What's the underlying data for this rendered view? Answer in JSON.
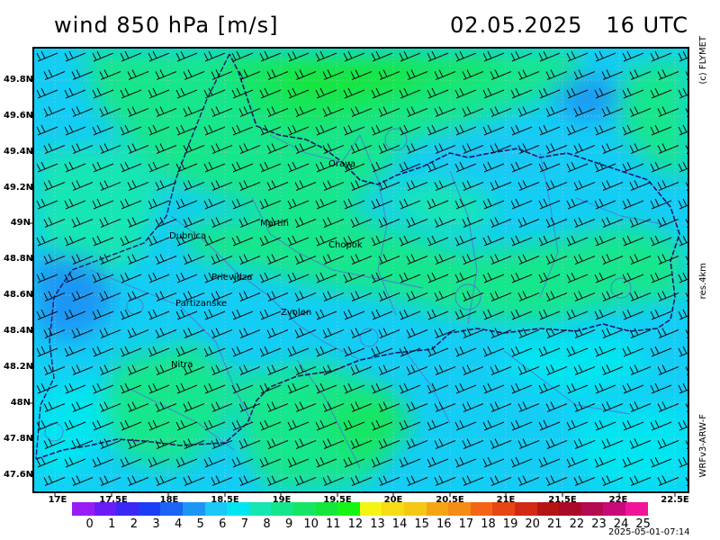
{
  "title": "wind 850 hPa [m/s]",
  "datetime": "02.05.2025",
  "time_utc": "16 UTC",
  "side_labels": {
    "copyright": "(c) FLYMET",
    "resolution": "res.4km",
    "model": "WRFv3-ARW-F"
  },
  "latitude_labels": [
    "49.8N",
    "49.6N",
    "49.4N",
    "49.2N",
    "49N",
    "48.8N",
    "48.6N",
    "48.4N",
    "48.2N",
    "48N",
    "47.8N",
    "47.6N"
  ],
  "longitude_labels": [
    "17E",
    "17.5E",
    "18E",
    "18.5E",
    "19E",
    "19.5E",
    "20E",
    "20.5E",
    "21E",
    "21.5E",
    "22E",
    "22.5E"
  ],
  "cities": [
    {
      "name": "Orava"
    },
    {
      "name": "Martin"
    },
    {
      "name": "Dubnica"
    },
    {
      "name": "Chopok"
    },
    {
      "name": "Prievidza"
    },
    {
      "name": "Partizanske"
    },
    {
      "name": "Zvolen"
    },
    {
      "name": "Nitra"
    }
  ],
  "legend": {
    "values": [
      "0",
      "1",
      "2",
      "3",
      "4",
      "5",
      "6",
      "7",
      "8",
      "9",
      "10",
      "11",
      "12",
      "13",
      "14",
      "15",
      "16",
      "17",
      "18",
      "19",
      "20",
      "21",
      "22",
      "23",
      "24",
      "25"
    ],
    "colors": [
      "#9a1cf5",
      "#6a1cf5",
      "#3c28f5",
      "#1c3cf5",
      "#1c64f5",
      "#1c96f5",
      "#1cc8f5",
      "#00e6f0",
      "#14e6b4",
      "#14e68c",
      "#14e664",
      "#14e63c",
      "#14f514",
      "#f5f514",
      "#f5dc14",
      "#f5c814",
      "#f5a514",
      "#f58c14",
      "#f56414",
      "#e64614",
      "#d22814",
      "#b41414",
      "#aa0a28",
      "#b40a50",
      "#c80a78",
      "#f0149b"
    ]
  },
  "timestamp": "2025-05-01-07:14"
}
